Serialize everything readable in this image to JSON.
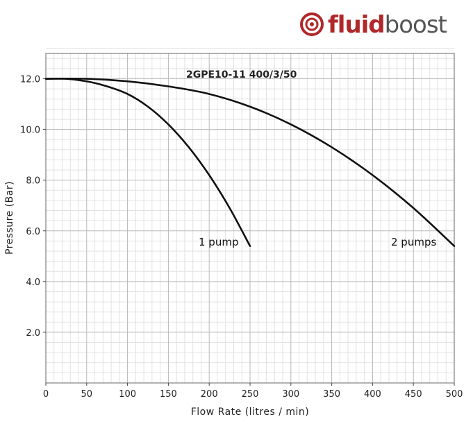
{
  "brand": {
    "name_bold": "fluid",
    "name_light": "boost",
    "primary_color": "#b0282a",
    "secondary_color": "#555555",
    "icon": "fluidboost-logo-icon"
  },
  "chart_data": {
    "type": "line",
    "title": "2GPE10-11 400/3/50",
    "xlabel": "Flow Rate (litres / min)",
    "ylabel": "Pressure (Bar)",
    "xlim": [
      0,
      500
    ],
    "ylim": [
      0,
      13
    ],
    "x_ticks": [
      0,
      50,
      100,
      150,
      200,
      250,
      300,
      350,
      400,
      450,
      500
    ],
    "y_ticks": [
      2.0,
      4.0,
      6.0,
      8.0,
      10.0,
      12.0
    ],
    "x_tick_labels": [
      "0",
      "50",
      "100",
      "150",
      "200",
      "250",
      "300",
      "350",
      "400",
      "450",
      "500"
    ],
    "y_tick_labels": [
      "2.0",
      "4.0",
      "6.0",
      "8.0",
      "10.0",
      "12.0"
    ],
    "grid": true,
    "series": [
      {
        "name": "1 pump",
        "x": [
          0,
          25,
          50,
          75,
          100,
          125,
          150,
          175,
          200,
          225,
          250
        ],
        "y": [
          12.0,
          12.0,
          11.9,
          11.7,
          11.4,
          10.9,
          10.2,
          9.3,
          8.2,
          6.9,
          5.4
        ]
      },
      {
        "name": "2 pumps",
        "x": [
          0,
          50,
          100,
          150,
          200,
          250,
          300,
          350,
          400,
          450,
          500
        ],
        "y": [
          12.0,
          12.0,
          11.9,
          11.7,
          11.4,
          10.9,
          10.2,
          9.3,
          8.2,
          6.9,
          5.4
        ]
      }
    ]
  }
}
